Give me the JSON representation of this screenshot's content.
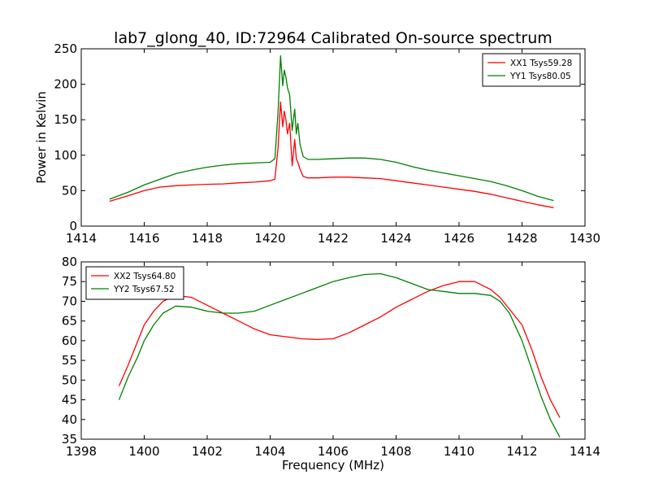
{
  "chart_data": [
    {
      "type": "line",
      "title": "lab7_glong_40, ID:72964 Calibrated On-source spectrum",
      "xlabel": "",
      "ylabel": "Power in Kelvin",
      "xlim": [
        1414,
        1430
      ],
      "ylim": [
        0,
        250
      ],
      "xticks": [
        "1414",
        "1416",
        "1418",
        "1420",
        "1422",
        "1424",
        "1426",
        "1428",
        "1430"
      ],
      "yticks": [
        "0",
        "50",
        "100",
        "150",
        "200",
        "250"
      ],
      "grid": false,
      "legend_position": "top-right",
      "series": [
        {
          "name": "XX1 Tsys59.28",
          "color": "#ff0000",
          "x": [
            1414.9,
            1415.5,
            1416.0,
            1416.5,
            1417.0,
            1417.5,
            1418.0,
            1418.5,
            1419.0,
            1419.5,
            1420.0,
            1420.15,
            1420.25,
            1420.33,
            1420.4,
            1420.45,
            1420.5,
            1420.55,
            1420.62,
            1420.7,
            1420.78,
            1420.83,
            1420.88,
            1420.95,
            1421.05,
            1421.2,
            1421.5,
            1422.0,
            1422.5,
            1423.0,
            1423.5,
            1424.0,
            1424.5,
            1425.0,
            1425.5,
            1426.0,
            1426.5,
            1427.0,
            1427.5,
            1428.0,
            1428.5,
            1429.0
          ],
          "values": [
            35,
            43,
            50,
            55,
            57,
            58,
            59,
            59.5,
            61,
            62,
            64,
            66,
            110,
            175,
            140,
            162,
            150,
            130,
            145,
            85,
            122,
            95,
            90,
            80,
            70,
            68,
            68,
            69,
            69,
            68,
            67,
            64,
            61,
            58,
            55,
            52,
            49,
            45,
            40,
            35,
            30,
            26
          ]
        },
        {
          "name": "YY1 Tsys80.05",
          "color": "#008000",
          "x": [
            1414.9,
            1415.5,
            1416.0,
            1416.5,
            1417.0,
            1417.5,
            1418.0,
            1418.5,
            1419.0,
            1419.5,
            1420.0,
            1420.15,
            1420.25,
            1420.33,
            1420.4,
            1420.45,
            1420.5,
            1420.55,
            1420.62,
            1420.7,
            1420.78,
            1420.83,
            1420.88,
            1420.95,
            1421.05,
            1421.2,
            1421.5,
            1422.0,
            1422.5,
            1423.0,
            1423.5,
            1424.0,
            1424.5,
            1425.0,
            1425.5,
            1426.0,
            1426.5,
            1427.0,
            1427.5,
            1428.0,
            1428.5,
            1429.0
          ],
          "values": [
            38,
            48,
            58,
            66,
            74,
            79,
            83,
            86,
            88,
            89,
            90,
            95,
            160,
            240,
            198,
            220,
            210,
            195,
            185,
            135,
            165,
            130,
            145,
            115,
            98,
            94,
            94,
            95,
            96,
            96,
            94,
            90,
            84,
            79,
            75,
            71,
            67,
            63,
            57,
            50,
            42,
            36
          ]
        }
      ]
    },
    {
      "type": "line",
      "title": "",
      "xlabel": "Frequency (MHz)",
      "ylabel": "",
      "xlim": [
        1398,
        1414
      ],
      "ylim": [
        35,
        80
      ],
      "xticks": [
        "1398",
        "1400",
        "1402",
        "1404",
        "1406",
        "1408",
        "1410",
        "1412",
        "1414"
      ],
      "yticks": [
        "35",
        "40",
        "45",
        "50",
        "55",
        "60",
        "65",
        "70",
        "75",
        "80"
      ],
      "grid": false,
      "legend_position": "top-left",
      "series": [
        {
          "name": "XX2 Tsys64.80",
          "color": "#ff0000",
          "x": [
            1399.2,
            1399.5,
            1399.8,
            1400.0,
            1400.3,
            1400.6,
            1401.0,
            1401.5,
            1402.0,
            1402.5,
            1403.0,
            1403.5,
            1404.0,
            1404.5,
            1405.0,
            1405.5,
            1406.0,
            1406.5,
            1407.0,
            1407.5,
            1408.0,
            1408.5,
            1409.0,
            1409.5,
            1410.0,
            1410.5,
            1411.0,
            1411.3,
            1411.6,
            1412.0,
            1412.3,
            1412.6,
            1412.9,
            1413.2
          ],
          "values": [
            48.5,
            54,
            60,
            64,
            67.5,
            70,
            71.5,
            71,
            69,
            67,
            65,
            63,
            61.5,
            61,
            60.5,
            60.3,
            60.5,
            62,
            64,
            66,
            68.5,
            70.5,
            72.5,
            74,
            75,
            75,
            73,
            71,
            68,
            64,
            58,
            51,
            45,
            40.5
          ]
        },
        {
          "name": "YY2 Tsys67.52",
          "color": "#008000",
          "x": [
            1399.2,
            1399.5,
            1399.8,
            1400.0,
            1400.3,
            1400.6,
            1401.0,
            1401.5,
            1402.0,
            1402.5,
            1403.0,
            1403.5,
            1404.0,
            1404.5,
            1405.0,
            1405.5,
            1406.0,
            1406.5,
            1407.0,
            1407.5,
            1408.0,
            1408.5,
            1409.0,
            1409.5,
            1410.0,
            1410.5,
            1411.0,
            1411.3,
            1411.6,
            1412.0,
            1412.3,
            1412.6,
            1412.9,
            1413.2
          ],
          "values": [
            45,
            51,
            56,
            60,
            64,
            67,
            68.8,
            68.5,
            67.5,
            67,
            67,
            67.5,
            69,
            70.5,
            72,
            73.5,
            75,
            76,
            76.8,
            77,
            76,
            74.5,
            73,
            72.5,
            72,
            72,
            71.5,
            70,
            67,
            60,
            53,
            46,
            40,
            35.5
          ]
        }
      ]
    }
  ]
}
